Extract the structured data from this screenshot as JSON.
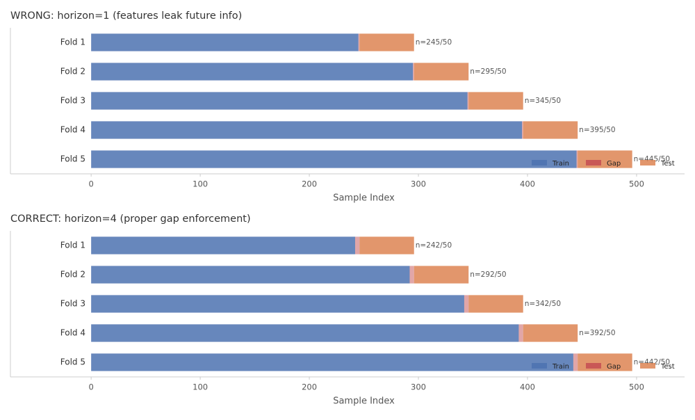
{
  "chart_data": [
    {
      "type": "bar",
      "orientation": "horizontal",
      "stacked": true,
      "title": "WRONG: horizon=1 (features leak future info)",
      "categories": [
        "Fold 1",
        "Fold 2",
        "Fold 3",
        "Fold 4",
        "Fold 5"
      ],
      "series": [
        {
          "name": "Train",
          "color": "#4c72b0",
          "values": [
            245,
            295,
            345,
            395,
            445
          ]
        },
        {
          "name": "Gap",
          "color": "#c44e52",
          "values": [
            1,
            1,
            1,
            1,
            1
          ]
        },
        {
          "name": "Test",
          "color": "#dd8452",
          "values": [
            50,
            50,
            50,
            50,
            50
          ]
        }
      ],
      "annotations": [
        "n=245/50",
        "n=295/50",
        "n=345/50",
        "n=395/50",
        "n=445/50"
      ],
      "xlabel": "Sample Index",
      "xlim": [
        -74,
        544
      ],
      "xticks": [
        0,
        100,
        200,
        300,
        400,
        500
      ],
      "legend": "lower right"
    },
    {
      "type": "bar",
      "orientation": "horizontal",
      "stacked": true,
      "title": "CORRECT: horizon=4 (proper gap enforcement)",
      "categories": [
        "Fold 1",
        "Fold 2",
        "Fold 3",
        "Fold 4",
        "Fold 5"
      ],
      "series": [
        {
          "name": "Train",
          "color": "#4c72b0",
          "values": [
            242,
            292,
            342,
            392,
            442
          ]
        },
        {
          "name": "Gap",
          "color": "#c44e52",
          "values": [
            4,
            4,
            4,
            4,
            4
          ]
        },
        {
          "name": "Test",
          "color": "#dd8452",
          "values": [
            50,
            50,
            50,
            50,
            50
          ]
        }
      ],
      "annotations": [
        "n=242/50",
        "n=292/50",
        "n=342/50",
        "n=392/50",
        "n=442/50"
      ],
      "xlabel": "Sample Index",
      "xlim": [
        -74,
        544
      ],
      "xticks": [
        0,
        100,
        200,
        300,
        400,
        500
      ],
      "legend": "lower right"
    }
  ]
}
